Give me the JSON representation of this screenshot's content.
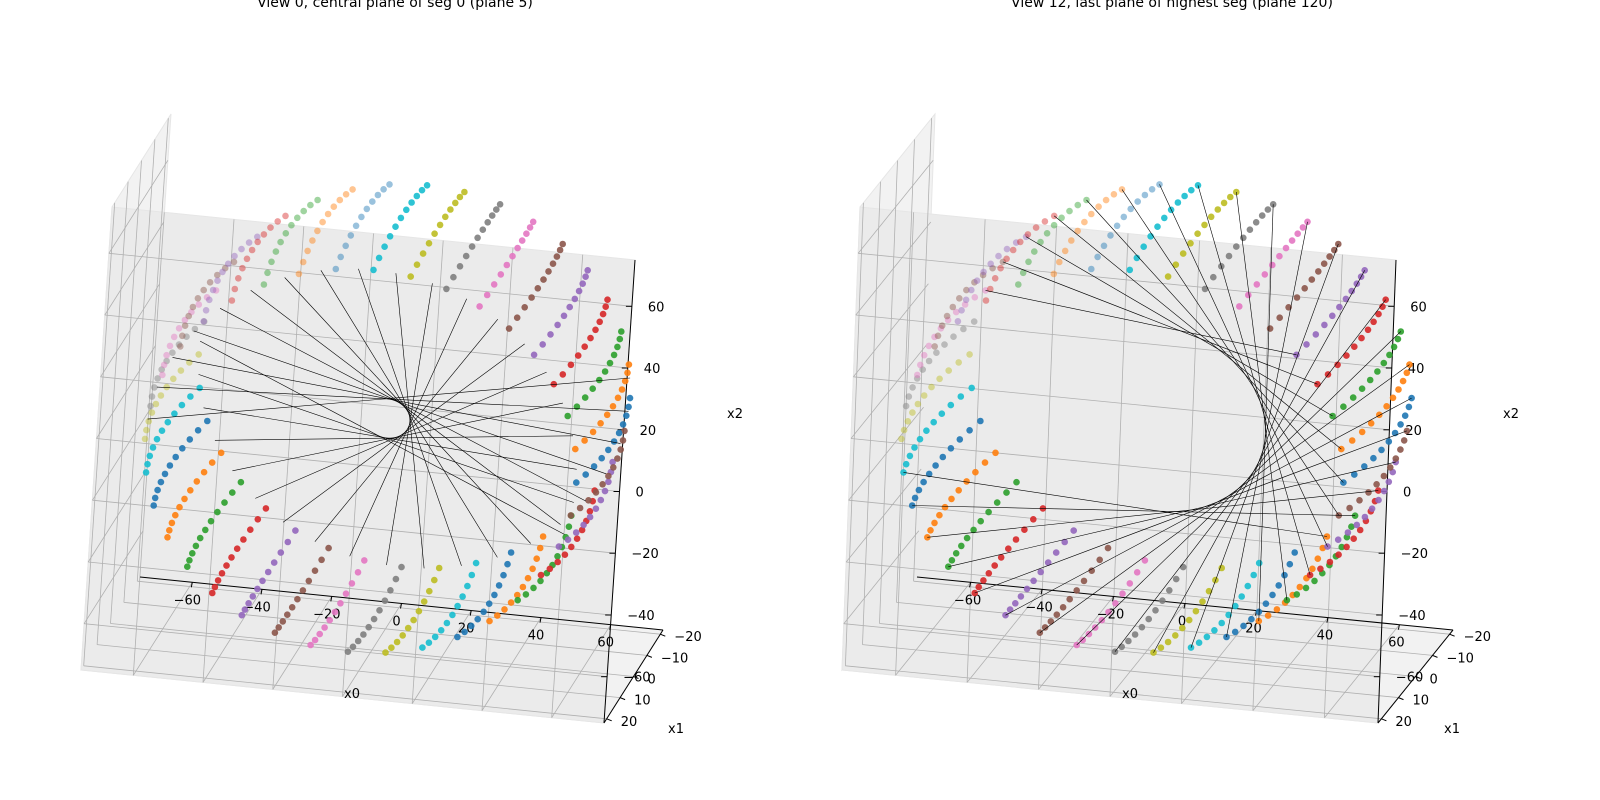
{
  "chart_data": [
    {
      "type": "scatter",
      "title": "View 0, central plane of seg 0 (plane 5)",
      "xlabel": "x0",
      "ylabel": "x1",
      "zlabel": "x2",
      "xlim": [
        -75,
        75
      ],
      "ylim": [
        -22,
        22
      ],
      "zlim": [
        -75,
        75
      ],
      "xticks": [
        -60,
        -40,
        -20,
        0,
        20,
        40,
        60
      ],
      "yticks": [
        -20,
        -10,
        0,
        10,
        20
      ],
      "zticks": [
        -60,
        -40,
        -20,
        0,
        20,
        40,
        60
      ],
      "grid": true,
      "point_cloud": {
        "shape": "sphere",
        "radius": 65,
        "planes": 11,
        "plane_range": [
          -20,
          20
        ],
        "points_per_ring": 36
      },
      "lines": {
        "count": 20,
        "angle_offset_deg": 6,
        "mode": "cross"
      }
    },
    {
      "type": "scatter",
      "title": "View 12, last plane of highest seg (plane 120)",
      "xlabel": "x0",
      "ylabel": "x1",
      "zlabel": "x2",
      "xlim": [
        -75,
        75
      ],
      "ylim": [
        -22,
        22
      ],
      "zlim": [
        -75,
        75
      ],
      "xticks": [
        -60,
        -40,
        -20,
        0,
        20,
        40,
        60
      ],
      "yticks": [
        -20,
        -10,
        0,
        10,
        20
      ],
      "zticks": [
        -60,
        -40,
        -20,
        0,
        20,
        40,
        60
      ],
      "grid": true,
      "point_cloud": {
        "shape": "sphere",
        "radius": 65,
        "planes": 11,
        "plane_range": [
          -20,
          20
        ],
        "points_per_ring": 36
      },
      "lines": {
        "count": 22,
        "angle_offset_deg": 150,
        "mode": "cross"
      }
    }
  ],
  "colors": [
    "#1f77b4",
    "#ff7f0e",
    "#2ca02c",
    "#d62728",
    "#9467bd",
    "#8c564b",
    "#e377c2",
    "#7f7f7f",
    "#bcbd22",
    "#17becf"
  ]
}
